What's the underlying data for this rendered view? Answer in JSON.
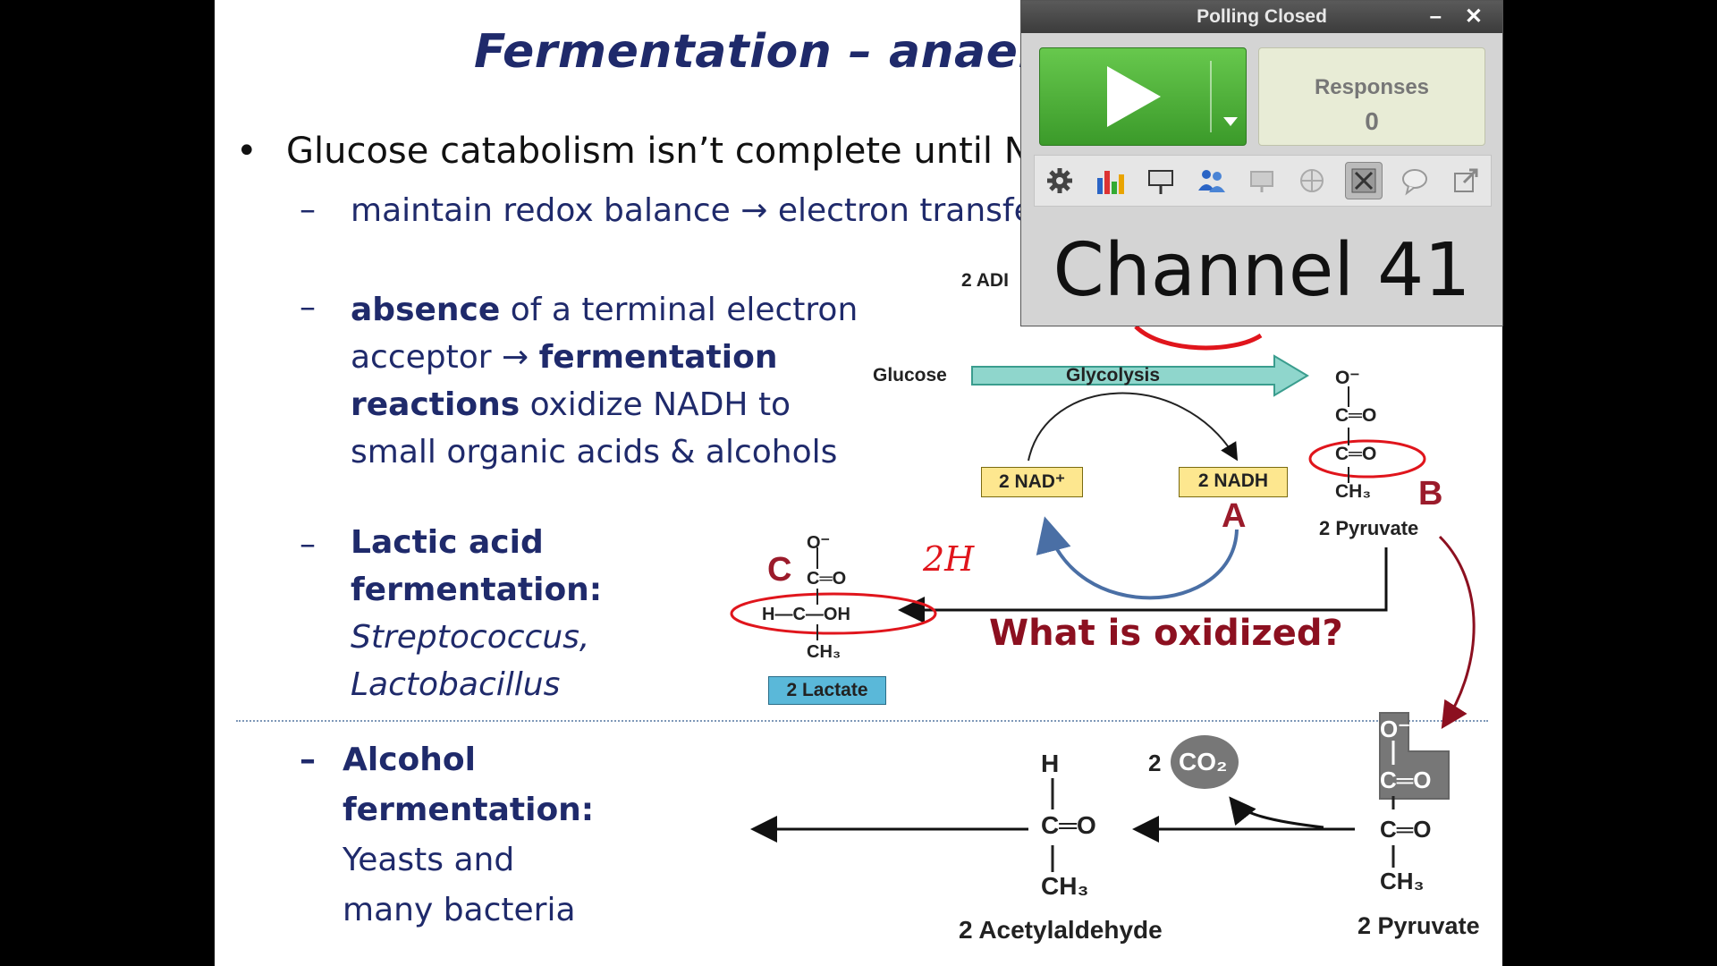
{
  "slide": {
    "title": "Fermentation – anaero",
    "bullet1": "Glucose catabolism isn’t complete until NA",
    "sub1": "maintain redox balance → electron transfe",
    "sub2": {
      "absence": "absence",
      "t1": " of a terminal electron",
      "t2": "acceptor → ",
      "fermentation": "fermentation",
      "reactions": "reactions",
      "t3": " oxidize NADH to",
      "t4": "small organic  acids & alcohols"
    },
    "sub3": {
      "line1": "Lactic acid",
      "line2": "fermentation:",
      "org1": "Streptococcus,",
      "org2": "Lactobacillus"
    },
    "sub4": {
      "line1": "Alcohol",
      "line2": "fermentation:",
      "line3": "Yeasts and",
      "line4": "many bacteria"
    }
  },
  "diagram": {
    "adp": "2 ADI",
    "glucose": "Glucose",
    "glycolysis": "Glycolysis",
    "nad": "2 NAD⁺",
    "nadh": "2 NADH",
    "pyruvate": "2 Pyruvate",
    "lactate": "2 Lactate",
    "acetylaldehyde": "2 Acetylaldehyde",
    "pyruvate2": "2 Pyruvate",
    "co2_count": "2",
    "co2": "CO₂",
    "question": "What is oxidized?",
    "label_a": "A",
    "label_b": "B",
    "label_c": "C",
    "handwritten": "2H",
    "o_minus": "O⁻",
    "c_eq_o": "C═O",
    "ch3": "CH₃",
    "h_c_oh": "H—C—OH",
    "h": "H"
  },
  "poll": {
    "title": "Polling Closed",
    "minimize": "–",
    "close": "✕",
    "responses_label": "Responses",
    "responses_count": "0",
    "channel": "Channel 41",
    "tools": [
      "gear-icon",
      "bar-chart-icon",
      "presentation-icon",
      "participants-icon",
      "monitor-icon",
      "globe-icon",
      "x-chart-icon",
      "speech-bubble-icon",
      "export-icon"
    ]
  },
  "colors": {
    "title_blue": "#1f2a6b",
    "annotation_red": "#e0151c",
    "play_green": "#4fb236",
    "glycolysis_teal": "#8fd6cc",
    "nad_yellow": "#fde78f",
    "lactate_blue": "#5ab8d9"
  }
}
